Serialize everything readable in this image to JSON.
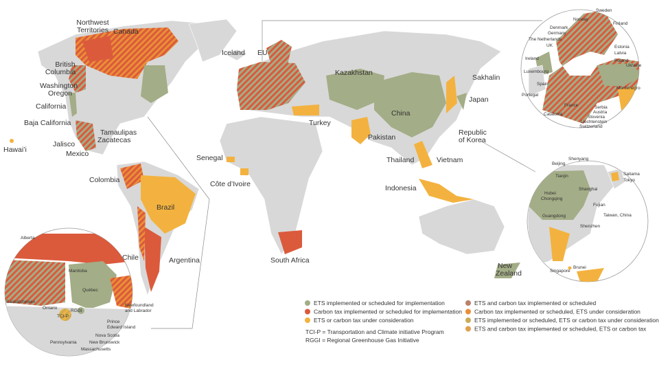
{
  "main_map": {
    "labels": {
      "northwest_territories": [
        "Northwest",
        "Territories"
      ],
      "canada": "Canada",
      "british_columbia": [
        "British",
        "Columbia"
      ],
      "washington": "Washington",
      "oregon": "Oregon",
      "california": "California",
      "baja_california": "Baja California",
      "hawaii": "Hawai’i",
      "tamaulipas": "Tamaulipas",
      "zacatecas": "Zacatecas",
      "jalisco": "Jalisco",
      "mexico": "Mexico",
      "iceland": "Iceland",
      "eu": "EU",
      "kazakhstan": "Kazakhstan",
      "china": "China",
      "turkey": "Turkey",
      "pakistan": "Pakistan",
      "sakhalin": "Sakhalin",
      "japan": "Japan",
      "korea": [
        "Republic",
        "of Korea"
      ],
      "senegal": "Senegal",
      "cote_divoire": "Côte d’Ivoire",
      "colombia": "Colombia",
      "brazil": "Brazil",
      "chile": "Chile",
      "argentina": "Argentina",
      "thailand": "Thailand",
      "vietnam": "Vietnam",
      "indonesia": "Indonesia",
      "south_africa": "South Africa",
      "new_zealand": [
        "New",
        "Zealand"
      ]
    }
  },
  "europe_inset": {
    "labels": {
      "sweden": "Sweden",
      "norway": "Norway",
      "finland": "Finland",
      "denmark": "Denmark",
      "germany": "Germany",
      "netherlands": "The Netherlands",
      "uk": "UK",
      "estonia": "Estonia",
      "latvia": "Latvia",
      "ireland": "Ireland",
      "poland": "Poland",
      "luxembourg": "Luxembourg",
      "ukraine": "Ukraine",
      "spain": "Spain",
      "portugal": "Portugal",
      "montenegro": "Montenegro",
      "france": "France",
      "serbia": "Serbia",
      "austria": "Austria",
      "slovenia": "Slovenia",
      "liechtenstein": "Liechtenstein",
      "switzerland": "Switzerland",
      "catalonia": "Catalonia"
    }
  },
  "asia_inset": {
    "labels": {
      "beijing": "Beijing",
      "shenyang": "Shenyang",
      "tianjin": "Tianjin",
      "saitama": "Saitama",
      "tokyo": "Tokyo",
      "shanghai": "Shanghai",
      "hubei": "Hubei",
      "chongqing": "Chongqing",
      "fujian": "Fujian",
      "guangdong": "Guangdong",
      "taiwan": "Taiwan, China",
      "shenzhen": "Shenzhen",
      "singapore": "Singapore",
      "brunei": "Brunei"
    }
  },
  "north_america_inset": {
    "labels": {
      "alberta": "Alberta",
      "manitoba": "Manitoba",
      "saskatchewan": "Saskatchewan",
      "quebec": "Québec",
      "ontario": "Ontario",
      "rggi": "RGGI",
      "tcip": "TCI-P",
      "newfoundland": [
        "Newfoundland",
        "and Labrador"
      ],
      "pei": [
        "Prince",
        "Edward Island"
      ],
      "nova_scotia": "Nova Scotia",
      "new_brunswick": "New Brunswick",
      "pennsylvania": "Pennsylvania",
      "massachusetts": "Massachusetts"
    }
  },
  "legend": {
    "items": [
      {
        "label": "ETS implemented or scheduled for implementation",
        "color": "#a3ad87"
      },
      {
        "label": "Carbon tax implemented or scheduled for implementation",
        "color": "#db5a3c"
      },
      {
        "label": "ETS or carbon tax under consideration",
        "color": "#f3b23f"
      },
      {
        "label": "ETS and carbon tax implemented or scheduled",
        "color": "#b98069"
      },
      {
        "label": "Carbon tax implemented or scheduled, ETS under consideration",
        "color": "#ea8f37"
      },
      {
        "label": "ETS implemented or scheduled, ETS or carbon tax under consideration",
        "color": "#c9ad58"
      },
      {
        "label": "ETS and carbon tax implemented or scheduled, ETS or carbon tax",
        "color": "#e29f4d"
      }
    ]
  },
  "notes": [
    "TCI-P = Transportation and Climate initiative Program",
    "RGGI = Regional Greenhouse Gas Initiative"
  ]
}
